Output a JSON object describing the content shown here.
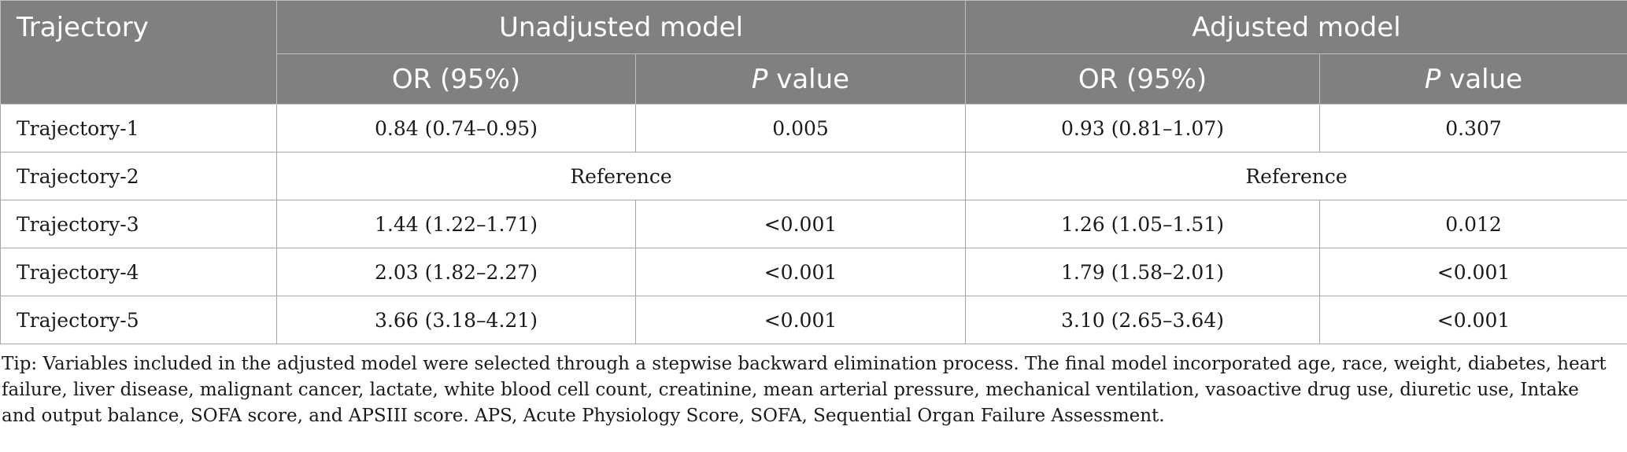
{
  "table": {
    "header": {
      "trajectory": "Trajectory",
      "unadjusted": "Unadjusted model",
      "adjusted": "Adjusted model",
      "or_label": "OR (95%)",
      "p_italic": "P",
      "p_suffix": " value"
    },
    "rows": [
      {
        "label": "Trajectory-1",
        "u_or": "0.84 (0.74–0.95)",
        "u_p": "0.005",
        "a_or": "0.93 (0.81–1.07)",
        "a_p": "0.307"
      },
      {
        "label": "Trajectory-2",
        "u_ref": "Reference",
        "a_ref": "Reference"
      },
      {
        "label": "Trajectory-3",
        "u_or": "1.44 (1.22–1.71)",
        "u_p": "<0.001",
        "a_or": "1.26 (1.05–1.51)",
        "a_p": "0.012"
      },
      {
        "label": "Trajectory-4",
        "u_or": "2.03 (1.82–2.27)",
        "u_p": "<0.001",
        "a_or": "1.79 (1.58–2.01)",
        "a_p": "<0.001"
      },
      {
        "label": "Trajectory-5",
        "u_or": "3.66 (3.18–4.21)",
        "u_p": "<0.001",
        "a_or": "3.10 (2.65–3.64)",
        "a_p": "<0.001"
      }
    ]
  },
  "footnote": "Tip: Variables included in the adjusted model were selected through a stepwise backward elimination process. The final model incorporated age, race, weight, diabetes, heart failure, liver disease, malignant cancer, lactate, white blood cell count, creatinine, mean arterial pressure, mechanical ventilation, vasoactive drug use, diuretic use, Intake and output balance, SOFA score, and APSIII score. APS, Acute Physiology Score, SOFA, Sequential Organ Failure Assessment."
}
